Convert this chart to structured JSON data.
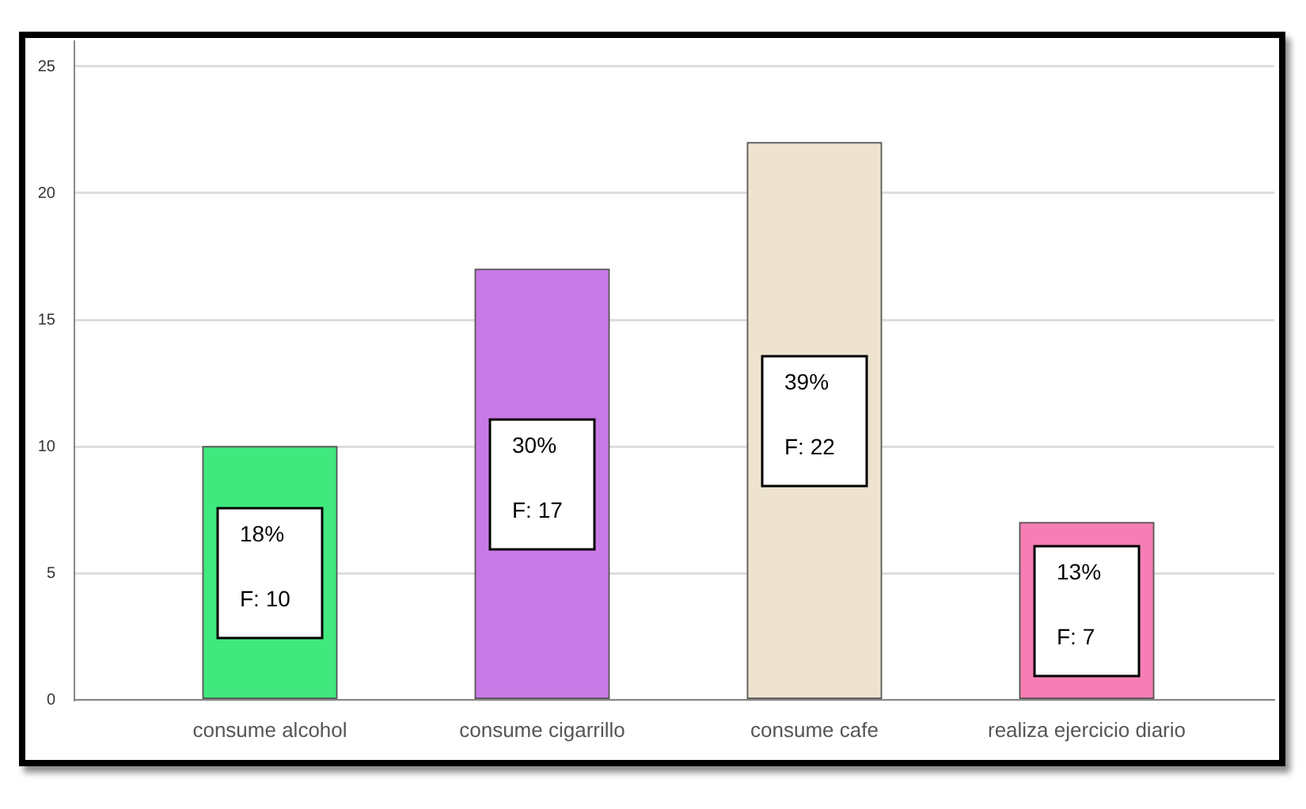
{
  "chart_data": {
    "type": "bar",
    "categories": [
      "consume alcohol",
      "consume cigarrillo",
      "consume cafe",
      "realiza ejercicio diario"
    ],
    "values": [
      10,
      17,
      22,
      7
    ],
    "colors": [
      "#40e87e",
      "#c87ae6",
      "#ede3cf",
      "#f67eb5"
    ],
    "value_labels": [
      "18%\nF: 10",
      "30%\nF: 17",
      "39%\nF: 22",
      "13%\nF: 7"
    ],
    "ylim": [
      0,
      26
    ],
    "yticks": [
      0,
      5,
      10,
      15,
      20,
      25
    ],
    "grid": "y"
  }
}
